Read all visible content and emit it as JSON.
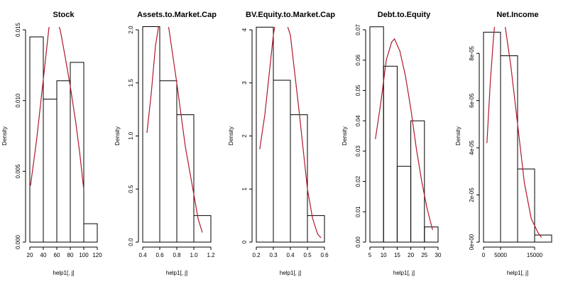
{
  "chart_data": [
    {
      "type": "histogram",
      "title": "Stock",
      "xlabel": "help1[, j]",
      "ylabel": "Density",
      "xlim": [
        20,
        120
      ],
      "ylim": [
        0,
        0.015
      ],
      "xticks": [
        "20",
        "40",
        "60",
        "80",
        "100",
        "120"
      ],
      "yticks": [
        "0.000",
        "0.005",
        "0.010",
        "0.015"
      ],
      "bins": [
        {
          "x0": 20,
          "x1": 40,
          "density": 0.0145
        },
        {
          "x0": 40,
          "x1": 60,
          "density": 0.0101
        },
        {
          "x0": 60,
          "x1": 80,
          "density": 0.0114
        },
        {
          "x0": 80,
          "x1": 100,
          "density": 0.0127
        },
        {
          "x0": 100,
          "x1": 120,
          "density": 0.0013
        }
      ],
      "curve_color": "#b2182b",
      "curve": [
        [
          21,
          0.004
        ],
        [
          30,
          0.0072
        ],
        [
          40,
          0.0115
        ],
        [
          48,
          0.015
        ],
        [
          53,
          0.017
        ],
        [
          58,
          0.016
        ],
        [
          65,
          0.015
        ],
        [
          72,
          0.0132
        ],
        [
          80,
          0.011
        ],
        [
          88,
          0.0085
        ],
        [
          94,
          0.0063
        ],
        [
          100,
          0.0037
        ]
      ]
    },
    {
      "type": "histogram",
      "title": "Assets.to.Market.Cap",
      "xlabel": "help1[, j]",
      "ylabel": "Density",
      "xlim": [
        0.4,
        1.2
      ],
      "ylim": [
        0,
        2.0
      ],
      "xticks": [
        "0.4",
        "0.6",
        "0.8",
        "1.0",
        "1.2"
      ],
      "yticks": [
        "0.0",
        "0.5",
        "1.0",
        "1.5",
        "2.0"
      ],
      "bins": [
        {
          "x0": 0.4,
          "x1": 0.6,
          "density": 2.03
        },
        {
          "x0": 0.6,
          "x1": 0.8,
          "density": 1.52
        },
        {
          "x0": 0.8,
          "x1": 1.0,
          "density": 1.2
        },
        {
          "x0": 1.0,
          "x1": 1.2,
          "density": 0.25
        }
      ],
      "curve_color": "#b2182b",
      "curve": [
        [
          0.45,
          1.03
        ],
        [
          0.5,
          1.4
        ],
        [
          0.55,
          1.85
        ],
        [
          0.6,
          2.1
        ],
        [
          0.63,
          2.25
        ],
        [
          0.7,
          2.05
        ],
        [
          0.8,
          1.5
        ],
        [
          0.9,
          0.9
        ],
        [
          1.0,
          0.45
        ],
        [
          1.05,
          0.22
        ],
        [
          1.1,
          0.09
        ]
      ]
    },
    {
      "type": "histogram",
      "title": "BV.Equity.to.Market.Cap",
      "xlabel": "help1[, j]",
      "ylabel": "Density",
      "xlim": [
        0.2,
        0.6
      ],
      "ylim": [
        0,
        4
      ],
      "xticks": [
        "0.2",
        "0.3",
        "0.4",
        "0.5",
        "0.6"
      ],
      "yticks": [
        "0",
        "1",
        "2",
        "3",
        "4"
      ],
      "bins": [
        {
          "x0": 0.2,
          "x1": 0.3,
          "density": 4.05
        },
        {
          "x0": 0.3,
          "x1": 0.4,
          "density": 3.05
        },
        {
          "x0": 0.4,
          "x1": 0.5,
          "density": 2.4
        },
        {
          "x0": 0.5,
          "x1": 0.6,
          "density": 0.5
        }
      ],
      "curve_color": "#b2182b",
      "curve": [
        [
          0.22,
          1.75
        ],
        [
          0.25,
          2.4
        ],
        [
          0.28,
          3.3
        ],
        [
          0.3,
          3.9
        ],
        [
          0.32,
          4.3
        ],
        [
          0.35,
          4.4
        ],
        [
          0.4,
          3.9
        ],
        [
          0.45,
          2.5
        ],
        [
          0.5,
          1.0
        ],
        [
          0.53,
          0.45
        ],
        [
          0.56,
          0.15
        ],
        [
          0.58,
          0.08
        ]
      ]
    },
    {
      "type": "histogram",
      "title": "Debt.to.Equity",
      "xlabel": "help1[, j]",
      "ylabel": "Density",
      "xlim": [
        5,
        30
      ],
      "ylim": [
        0,
        0.07
      ],
      "xticks": [
        "5",
        "10",
        "15",
        "20",
        "25",
        "30"
      ],
      "yticks": [
        "0.00",
        "0.01",
        "0.02",
        "0.03",
        "0.04",
        "0.05",
        "0.06",
        "0.07"
      ],
      "bins": [
        {
          "x0": 5,
          "x1": 10,
          "density": 0.071
        },
        {
          "x0": 10,
          "x1": 15,
          "density": 0.058
        },
        {
          "x0": 15,
          "x1": 20,
          "density": 0.025
        },
        {
          "x0": 20,
          "x1": 25,
          "density": 0.04
        },
        {
          "x0": 25,
          "x1": 30,
          "density": 0.005
        }
      ],
      "curve_color": "#b2182b",
      "curve": [
        [
          7,
          0.034
        ],
        [
          9,
          0.046
        ],
        [
          11,
          0.06
        ],
        [
          13,
          0.066
        ],
        [
          14,
          0.067
        ],
        [
          16,
          0.063
        ],
        [
          18,
          0.055
        ],
        [
          20,
          0.044
        ],
        [
          22,
          0.031
        ],
        [
          24,
          0.02
        ],
        [
          26,
          0.011
        ],
        [
          28,
          0.004
        ]
      ]
    },
    {
      "type": "histogram",
      "title": "Net.Income",
      "xlabel": "help1[, j]",
      "ylabel": "Density",
      "xlim": [
        0,
        20000
      ],
      "ylim": [
        0,
        9e-05
      ],
      "xticks": [
        "0",
        "5000",
        "15000"
      ],
      "xtick_values": [
        0,
        5000,
        15000
      ],
      "yticks": [
        "0e+00",
        "2e-05",
        "4e-05",
        "6e-05",
        "8e-05"
      ],
      "bins": [
        {
          "x0": 0,
          "x1": 5000,
          "density": 8.9e-05
        },
        {
          "x0": 5000,
          "x1": 10000,
          "density": 7.9e-05
        },
        {
          "x0": 10000,
          "x1": 15000,
          "density": 3.1e-05
        },
        {
          "x0": 15000,
          "x1": 20000,
          "density": 3e-06
        }
      ],
      "curve_color": "#b2182b",
      "curve": [
        [
          1000,
          4.2e-05
        ],
        [
          2000,
          6.8e-05
        ],
        [
          3000,
          8.8e-05
        ],
        [
          3500,
          9.5e-05
        ],
        [
          4500,
          0.0001
        ],
        [
          6000,
          9.5e-05
        ],
        [
          8000,
          7.5e-05
        ],
        [
          10000,
          5e-05
        ],
        [
          12000,
          2.5e-05
        ],
        [
          14000,
          1e-05
        ],
        [
          16000,
          4e-06
        ],
        [
          17000,
          2e-06
        ]
      ]
    }
  ]
}
